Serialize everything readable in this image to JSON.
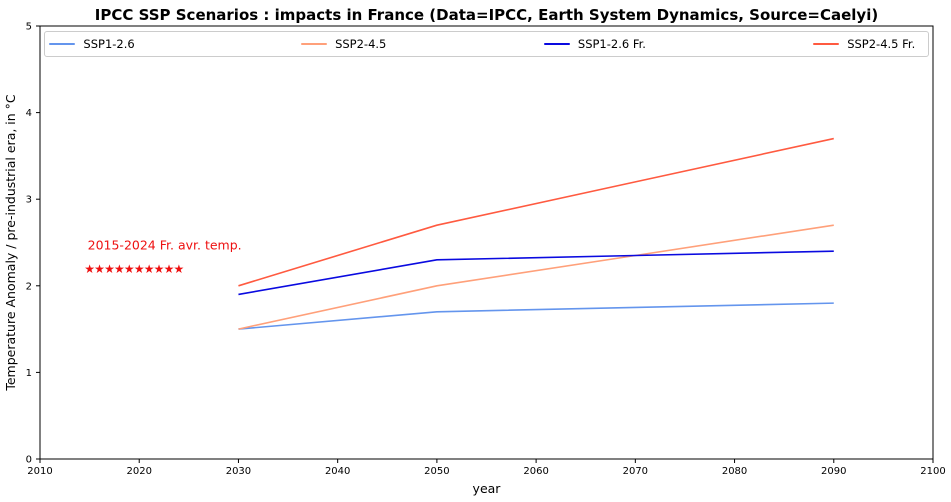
{
  "chart_data": {
    "type": "line",
    "title": "IPCC SSP Scenarios : impacts in France (Data=IPCC, Earth System Dynamics, Source=Caelyi)",
    "xlabel": "year",
    "ylabel": "Temperature Anomaly / pre-industrial era, in °C",
    "xlim": [
      2010,
      2100
    ],
    "ylim": [
      0,
      5
    ],
    "xticks": [
      2010,
      2020,
      2030,
      2040,
      2050,
      2060,
      2070,
      2080,
      2090,
      2100
    ],
    "yticks": [
      0,
      1,
      2,
      3,
      4,
      5
    ],
    "grid": false,
    "legend_position": "top-inside-horizontal",
    "x": [
      2030,
      2050,
      2070,
      2090
    ],
    "series": [
      {
        "name": "SSP1-2.6",
        "color": "#6495ED",
        "values": [
          1.5,
          1.7,
          1.75,
          1.8
        ]
      },
      {
        "name": "SSP2-4.5",
        "color": "#FFA07A",
        "values": [
          1.5,
          2.0,
          2.35,
          2.7
        ]
      },
      {
        "name": "SSP1-2.6 Fr.",
        "color": "#0A0AE0",
        "values": [
          1.9,
          2.3,
          2.35,
          2.4
        ]
      },
      {
        "name": "SSP2-4.5 Fr.",
        "color": "#FF5A40",
        "values": [
          2.0,
          2.7,
          3.2,
          3.7
        ]
      }
    ],
    "annotation": {
      "text": "2015-2024 Fr. avr. temp.",
      "color": "#EE1111",
      "marker": "star",
      "marker_years": [
        2015,
        2016,
        2017,
        2018,
        2019,
        2020,
        2021,
        2022,
        2023,
        2024
      ],
      "marker_value": 2.2,
      "text_anchor_year": 2014.8,
      "text_anchor_value": 2.42
    }
  }
}
